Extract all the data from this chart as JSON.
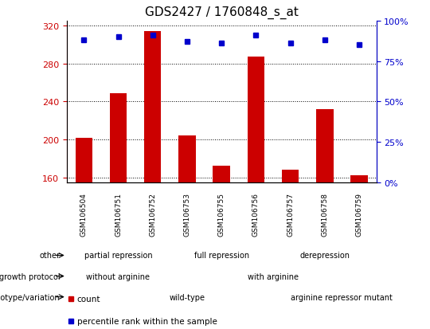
{
  "title": "GDS2427 / 1760848_s_at",
  "samples": [
    "GSM106504",
    "GSM106751",
    "GSM106752",
    "GSM106753",
    "GSM106755",
    "GSM106756",
    "GSM106757",
    "GSM106758",
    "GSM106759"
  ],
  "counts": [
    202,
    249,
    314,
    204,
    172,
    287,
    168,
    232,
    162
  ],
  "percentile_ranks": [
    88,
    90,
    91,
    87,
    86,
    91,
    86,
    88,
    85
  ],
  "ylim_left": [
    155,
    325
  ],
  "ylim_right": [
    0,
    100
  ],
  "yticks_left": [
    160,
    200,
    240,
    280,
    320
  ],
  "yticks_right": [
    0,
    25,
    50,
    75,
    100
  ],
  "bar_color": "#cc0000",
  "dot_color": "#0000cc",
  "bar_width": 0.5,
  "annotation_rows": [
    {
      "label": "other",
      "segments": [
        {
          "text": "partial repression",
          "start": 0,
          "end": 3,
          "color": "#aaddaa"
        },
        {
          "text": "full repression",
          "start": 3,
          "end": 6,
          "color": "#77cc77"
        },
        {
          "text": "derepression",
          "start": 6,
          "end": 9,
          "color": "#44aa44"
        }
      ]
    },
    {
      "label": "growth protocol",
      "segments": [
        {
          "text": "without arginine",
          "start": 0,
          "end": 3,
          "color": "#9999dd"
        },
        {
          "text": "with arginine",
          "start": 3,
          "end": 9,
          "color": "#bbbbee"
        }
      ]
    },
    {
      "label": "genotype/variation",
      "segments": [
        {
          "text": "wild-type",
          "start": 0,
          "end": 7,
          "color": "#f0b0b0"
        },
        {
          "text": "arginine repressor mutant",
          "start": 7,
          "end": 9,
          "color": "#cc8888"
        }
      ]
    }
  ],
  "title_fontsize": 11,
  "axis_color_left": "#cc0000",
  "axis_color_right": "#0000cc"
}
